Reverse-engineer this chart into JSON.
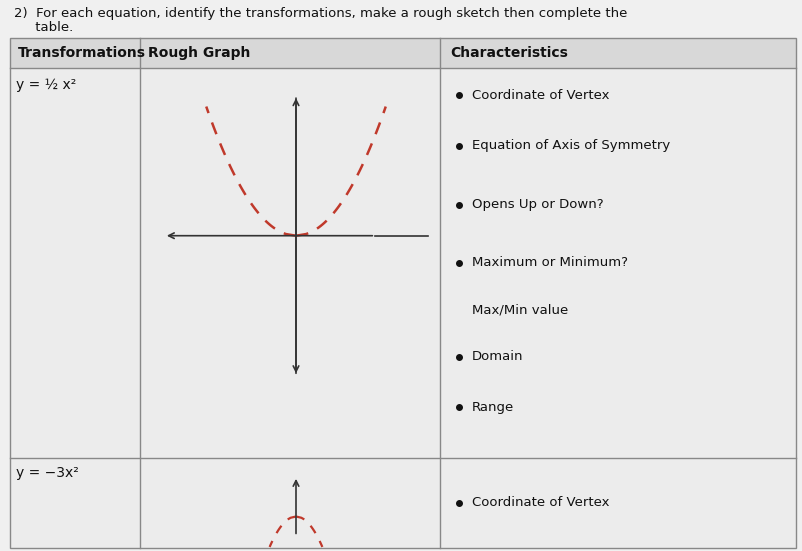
{
  "title_line1": "2)  For each equation, identify the transformations, make a rough sketch then complete the",
  "title_line2": "     table.",
  "col_headers": [
    "Transformations",
    "Rough Graph",
    "Characteristics"
  ],
  "row1_transform": "y = ½ x²",
  "row2_transform": "y = −3x²",
  "characteristics": [
    "Coordinate of Vertex",
    "Equation of Axis of Symmetry",
    "Opens Up or Down?",
    "Maximum or Minimum?",
    "Max/Min value",
    "Domain",
    "Range"
  ],
  "row2_char": "Coordinate of Vertex",
  "dashed_color": "#c0392b",
  "axis_color": "#333333",
  "text_color": "#111111",
  "border_color": "#888888",
  "header_bg": "#d8d8d8",
  "cell_bg": "#ececec",
  "fig_width": 8.03,
  "fig_height": 5.51,
  "dpi": 100
}
